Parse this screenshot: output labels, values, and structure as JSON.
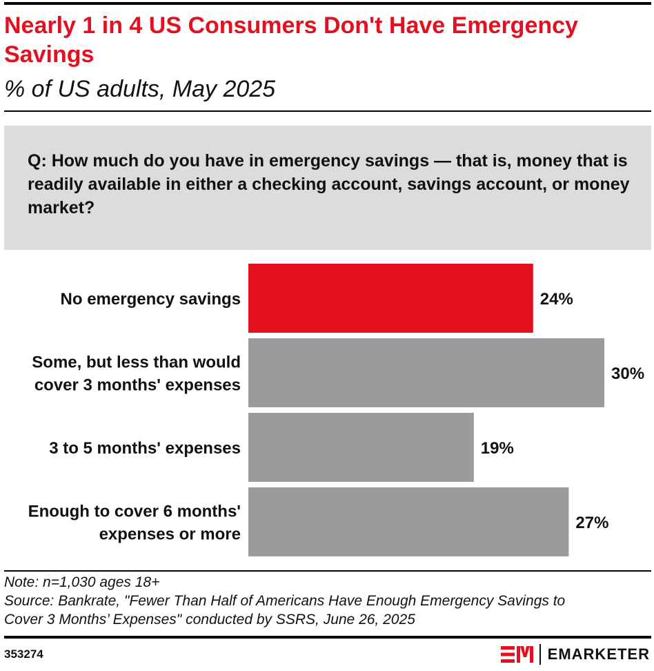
{
  "header": {
    "title": "Nearly 1 in 4 US Consumers Don't Have Emergency Savings",
    "subtitle": "% of US adults, May 2025"
  },
  "question": "Q: How much do you have in emergency savings — that is, money that is readily available in either a checking account, savings account, or money market?",
  "chart_data": {
    "type": "bar",
    "orientation": "horizontal",
    "categories": [
      [
        "No emergency savings"
      ],
      [
        "Some, but less than would",
        "cover 3 months' expenses"
      ],
      [
        "3 to 5 months' expenses"
      ],
      [
        "Enough to cover 6 months'",
        "expenses or more"
      ]
    ],
    "values": [
      24,
      30,
      19,
      27
    ],
    "value_labels": [
      "24%",
      "30%",
      "19%",
      "27%"
    ],
    "colors": [
      "#e3101f",
      "#9b9b9b",
      "#9b9b9b",
      "#9b9b9b"
    ],
    "xlim": [
      0,
      30
    ],
    "grid": false,
    "legend": "none"
  },
  "footer": {
    "note": "Note: n=1,030 ages 18+",
    "source_line1": "Source: Bankrate, \"Fewer Than Half of Americans Have Enough Emergency Savings to",
    "source_line2": "Cover 3 Months’ Expenses\" conducted by SSRS, June 26, 2025",
    "chart_id": "353274",
    "brand_name": "EMARKETER",
    "brand_color": "#e3101f"
  }
}
